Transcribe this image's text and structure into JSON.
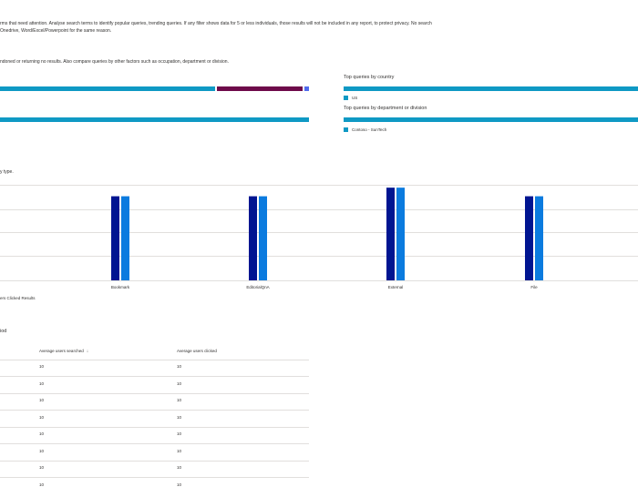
{
  "intro": {
    "line1": "rms that need attention. Analyse search terms to identify popular queries, trending queries. If any filter shows data for 5 or less individuals, those results will not be included in any report, to protect privacy. No search",
    "line2": "Onedrive, Word/Excel/Powerpoint for the same reason."
  },
  "abandoned": {
    "description": "ndoned or returning no results. Also compare queries by other factors such as occupation, department or division."
  },
  "top_country": {
    "title": "Top queries by country",
    "legend": "US"
  },
  "top_department": {
    "title": "Top queries by department or division",
    "legend": "Contoso - SunTech"
  },
  "colors": {
    "teal": "#0f99c4",
    "maroon": "#6e0a4a",
    "blue_small": "#4f6bed",
    "navy": "#001591",
    "azure": "#0b7bdf",
    "grid": "#e1dfdd"
  },
  "entity_chart": {
    "heading": "y type.",
    "legend": "ers Clicked Results"
  },
  "chart_data": {
    "type": "bar",
    "categories": [
      "Bookmark",
      "EditorialQnA",
      "External",
      "File"
    ],
    "series": [
      {
        "values": [
          88,
          88,
          97,
          88
        ]
      },
      {
        "values": [
          88,
          88,
          97,
          88
        ]
      }
    ],
    "ylim": [
      0,
      100
    ],
    "grid": true
  },
  "table": {
    "title": "iod",
    "headers": [
      "Average users searched",
      "Average users clicked"
    ],
    "sort_icon": "↓",
    "rows": [
      [
        "10",
        "10"
      ],
      [
        "10",
        "10"
      ],
      [
        "10",
        "10"
      ],
      [
        "10",
        "10"
      ],
      [
        "10",
        "10"
      ],
      [
        "10",
        "10"
      ],
      [
        "10",
        "10"
      ],
      [
        "10",
        "10"
      ]
    ]
  }
}
